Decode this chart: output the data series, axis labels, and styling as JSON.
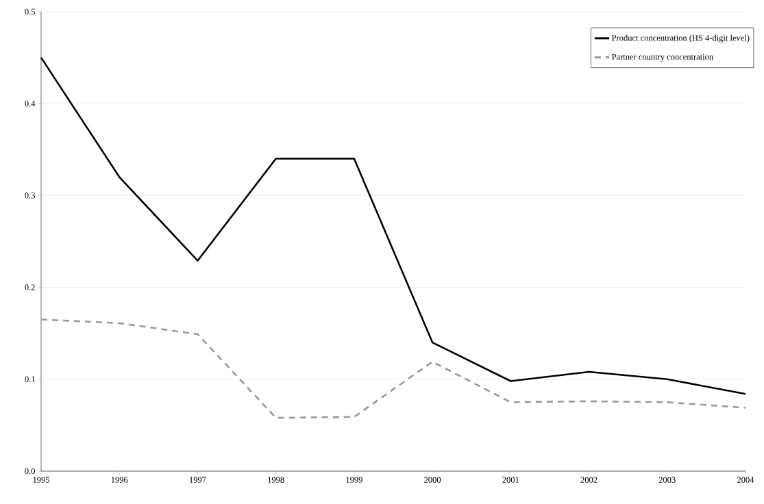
{
  "chart_data": {
    "type": "line",
    "x": [
      1995,
      1996,
      1997,
      1998,
      1999,
      2000,
      2001,
      2002,
      2003,
      2004
    ],
    "series": [
      {
        "name": "Product concentration (HS 4-digit level)",
        "color": "#000000",
        "line_style": "solid",
        "values": [
          0.45,
          0.32,
          0.229,
          0.34,
          0.34,
          0.14,
          0.098,
          0.108,
          0.1,
          0.084
        ]
      },
      {
        "name": "Partner country concentration",
        "color": "#999999",
        "line_style": "dashed",
        "values": [
          0.165,
          0.161,
          0.149,
          0.058,
          0.059,
          0.119,
          0.075,
          0.076,
          0.075,
          0.069
        ]
      }
    ],
    "xlim": [
      1995,
      2004
    ],
    "xticks": [
      1995,
      1996,
      1997,
      1998,
      1999,
      2000,
      2001,
      2002,
      2003,
      2004
    ],
    "ylim": [
      0,
      0.5
    ],
    "yticks": [
      {
        "value": 0,
        "label": "0.0"
      },
      0.1,
      0.2,
      0.3,
      0.4,
      0.5
    ],
    "grid": "y",
    "legend": "top right"
  }
}
